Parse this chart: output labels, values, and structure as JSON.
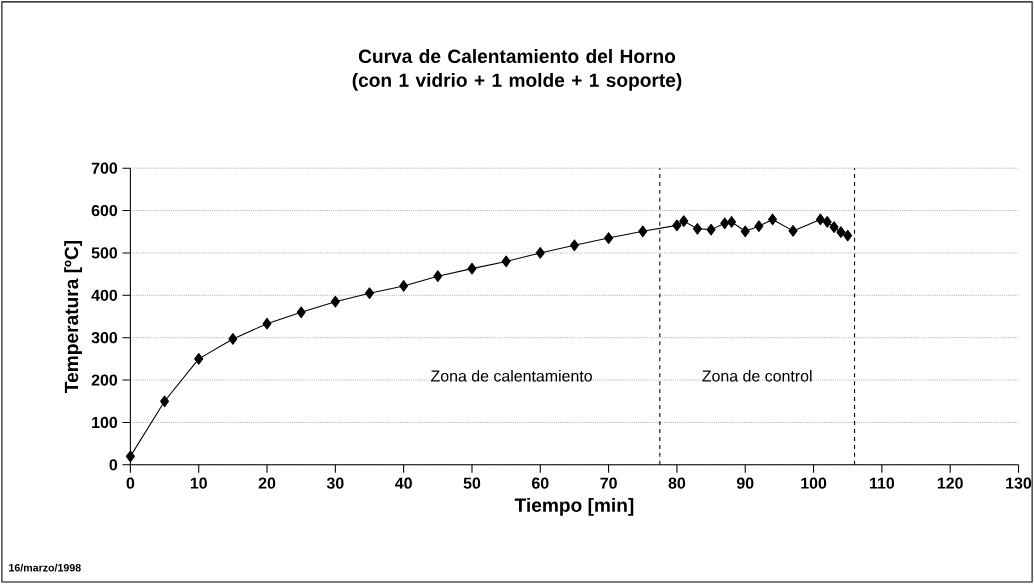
{
  "chart_data": {
    "type": "line",
    "title": "Curva de Calentamiento del Horno\n(con 1 vidrio + 1 molde + 1 soporte)",
    "xlabel": "Tiempo [min]",
    "ylabel": "Temperatura [ºC]",
    "x": [
      0,
      5,
      10,
      15,
      20,
      25,
      30,
      35,
      40,
      45,
      50,
      55,
      60,
      65,
      70,
      75,
      80,
      81,
      83,
      85,
      87,
      88,
      90,
      92,
      94,
      97,
      101,
      102,
      103,
      104,
      105
    ],
    "series": [
      {
        "color": "#000000",
        "values": [
          20,
          150,
          250,
          297,
          333,
          360,
          385,
          405,
          422,
          445,
          463,
          480,
          500,
          518,
          535,
          551,
          565,
          575,
          557,
          555,
          570,
          573,
          551,
          563,
          579,
          552,
          579,
          573,
          561,
          549,
          541
        ]
      }
    ],
    "xlim": [
      0,
      130
    ],
    "xticks": [
      0,
      10,
      20,
      30,
      40,
      50,
      60,
      70,
      80,
      90,
      100,
      110,
      120,
      130
    ],
    "ylim": [
      0,
      700
    ],
    "yticks": [
      0,
      100,
      200,
      300,
      400,
      500,
      600,
      700
    ],
    "grid": "y",
    "marker": "diamond",
    "line_style": "solid",
    "ref_lines": [
      {
        "axis": "x",
        "value": 77.5,
        "line_style": "dashed"
      },
      {
        "axis": "x",
        "value": 106,
        "line_style": "dashed"
      }
    ],
    "annotations": [
      "Zona de calentamiento",
      "Zona de control",
      "16/marzo/1998"
    ]
  }
}
